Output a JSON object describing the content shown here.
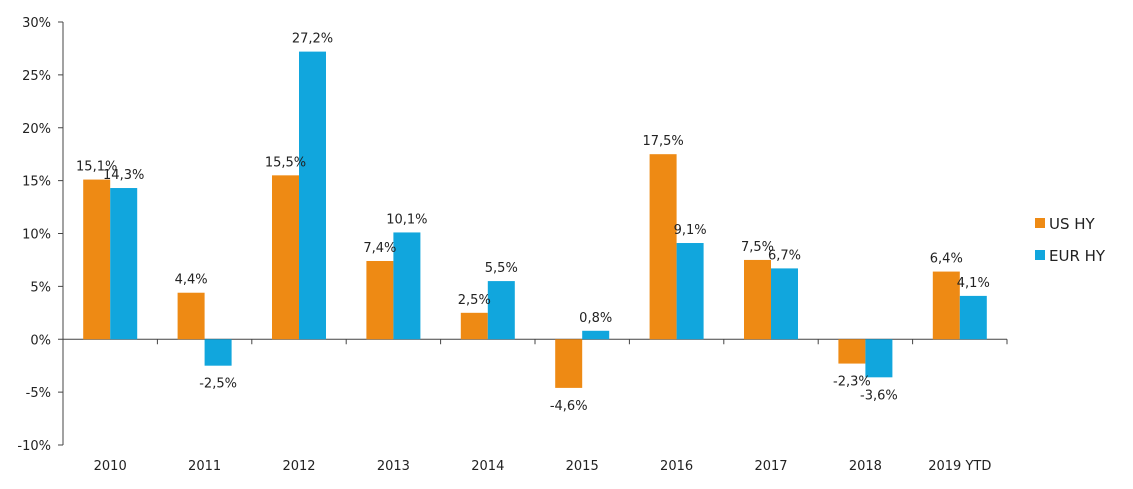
{
  "chart_data": {
    "type": "bar",
    "title": "",
    "xlabel": "",
    "ylabel": "",
    "categories": [
      "2010",
      "2011",
      "2012",
      "2013",
      "2014",
      "2015",
      "2016",
      "2017",
      "2018",
      "2019 YTD"
    ],
    "series": [
      {
        "name": "US HY",
        "color": "#EE8A14",
        "values": [
          15.1,
          4.4,
          15.5,
          7.4,
          2.5,
          -4.6,
          17.5,
          7.5,
          -2.3,
          6.4
        ],
        "labels": [
          "15,1%",
          "4,4%",
          "15,5%",
          "7,4%",
          "2,5%",
          "-4,6%",
          "17,5%",
          "7,5%",
          "-2,3%",
          "6,4%"
        ]
      },
      {
        "name": "EUR HY",
        "color": "#11A6DD",
        "values": [
          14.3,
          -2.5,
          27.2,
          10.1,
          5.5,
          0.8,
          9.1,
          6.7,
          -3.6,
          4.1
        ],
        "labels": [
          "14,3%",
          "-2,5%",
          "27,2%",
          "10,1%",
          "5,5%",
          "0,8%",
          "9,1%",
          "6,7%",
          "-3,6%",
          "4,1%"
        ]
      }
    ],
    "ylim": [
      -10,
      30
    ],
    "yticks": [
      30,
      25,
      20,
      15,
      10,
      5,
      0,
      -5,
      -10
    ],
    "ytick_labels": [
      "30%",
      "25%",
      "20%",
      "15%",
      "10%",
      "5%",
      "0%",
      "-5%",
      "-10%"
    ],
    "grid": false,
    "legend": {
      "position": "right"
    }
  }
}
